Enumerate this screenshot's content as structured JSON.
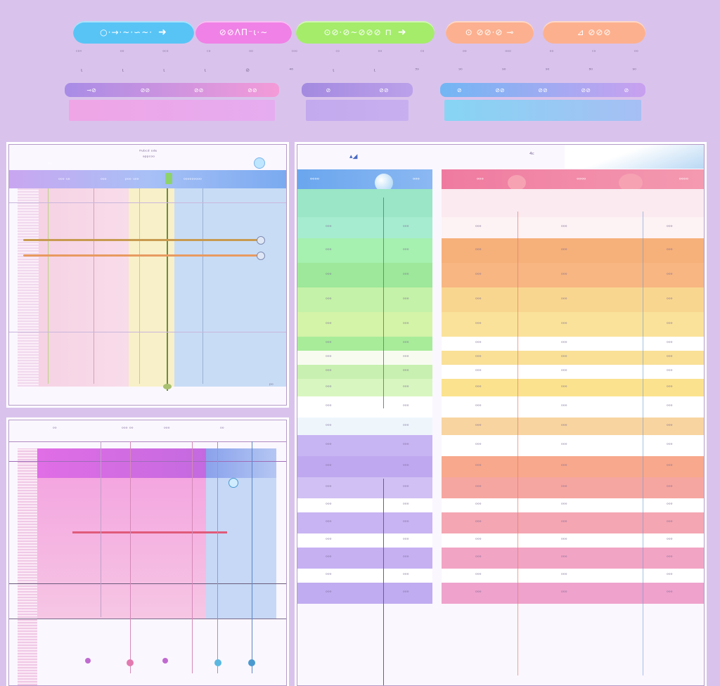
{
  "pills": [
    {
      "label": "○·→·~·∽~·",
      "arrow": "➜",
      "color": "#58c4f6"
    },
    {
      "label": "⊘⊘ΛΠ⁻ι·∼",
      "arrow": "",
      "color": "#f081e6"
    },
    {
      "label": "⊙⊘·⊘~⊘⊘⊘ ⊓",
      "arrow": "➜",
      "color": "#a4ec6a"
    },
    {
      "label": "⊙ ⊘⊘·⊘ ⊸",
      "arrow": "",
      "color": "#fcb08f"
    },
    {
      "label": "⊿ ⊘⊘⊘",
      "arrow": "",
      "color": "#fdb08e"
    }
  ],
  "tick_labels_row1": [
    "ᶜᵒⁿ",
    "ᵒᵒ",
    "ᵒᶜᵒ",
    "ᶜᵒ",
    "ᵒᵒ",
    "ᶜᵒᵒ",
    "ᶜᵒ",
    "ᵒᵒ",
    "ᶜᵒ",
    "ᵒᵒ",
    "ᵒᵒᵒ",
    "ᵒᵒ",
    "ᶜᵒ",
    "ᵒᵒ"
  ],
  "tick_labels_row2": [
    "ι",
    "ι",
    "ι",
    "ι",
    "⊘",
    "⁴⁶",
    "ι",
    "ι",
    "³⁹",
    "⁹⁰",
    "⁹⁰",
    "⁹⁰",
    "⁸⁰",
    "⁹⁰"
  ],
  "gradient_bars": [
    {
      "caps": [
        "⊸⊘",
        "⊘⊘",
        "⊘⊘",
        "⊘⊘"
      ],
      "cap_colors": [
        "#a88ce6",
        "#f49bd8"
      ],
      "body_colors": [
        "#f3a0e5",
        "#e7a8f0"
      ]
    },
    {
      "caps": [
        "⊘",
        "⊘⊘"
      ],
      "cap_colors": [
        "#a48ae0",
        "#bba0ea"
      ],
      "body_colors": [
        "#bfa4ee",
        "#c4acf0"
      ]
    },
    {
      "caps": [
        "⊘",
        "⊘⊘",
        "⊘⊘",
        "⊘⊘",
        "⊘"
      ],
      "cap_colors": [
        "#72b6f4",
        "#c9a0f0"
      ],
      "body_colors": [
        "#78d8f6",
        "#9dbef6"
      ]
    }
  ],
  "panel_a": {
    "title": "ᴴᵘᵇᶜᵈ ᵒᵈᵉ",
    "subtitle": "ᵃᵖᵖᶜᵒᵒ",
    "header_labels": [
      "ᵒᵒ",
      "ᵒᵒᵒ ᵘᵒ",
      "ᵒᵒᵒ",
      "ᵖᵒᵒ ᵘᵒᵒ",
      "ᵒᵒᵒᵒᵒᵒᵒᵒᵒ"
    ],
    "footer_label": "ᵖᵒ"
  },
  "panel_b": {
    "header_labels": [
      "ᵒᵒ",
      "ᵒᵒᵒ ᵒᵒ",
      "ᵒᵒᵒ",
      "ᵒᵒ"
    ]
  },
  "panel_c": {
    "title": "⁴ᶜ",
    "left_header": [
      "ᵒᵒᵒᵒ",
      "ᵒᵒᵒ"
    ],
    "right_header": [
      "ᵒᵒᵒ",
      "ᵒᵒᵒᵒ",
      "ᵒᵒᵒᵒ"
    ],
    "rows": [
      {
        "a": "ᵒᵒᵒ",
        "b": "ᵒᵒᵒ",
        "c": "ᵒᵒᵒ",
        "d": "ᵒᵒᵒ"
      },
      {
        "a": "ᵒᵒᵒ",
        "b": "ᵒᵒᵒ",
        "c": "ᵒᵒᵒ",
        "d": "ᵒᵒᵒ"
      },
      {
        "a": "ᵒᵒᵒ",
        "b": "ᵒᵒᵒ",
        "c": "ᵒᵒᵒ",
        "d": "ᵒᵒᵒ"
      },
      {
        "a": "ᵒᵒᵒ",
        "b": "ᵒᵒᵒ",
        "c": "ᵒᵒᵒ",
        "d": "ᵒᵒᵒ"
      },
      {
        "a": "ᵒᵒᵒ",
        "b": "ᵒᵒᵒ",
        "c": "ᵒᵒᵒ",
        "d": "ᵒᵒᵒ"
      },
      {
        "a": "ᵒᵒᵒ",
        "b": "ᵒᵒᵒ",
        "c": "ᵒᵒᵒ",
        "d": "ᵒᵒᵒ"
      },
      {
        "a": "ᵒᵒᵒ",
        "b": "ᵒᵒᵒ",
        "c": "ᵒᵒᵒ",
        "d": "ᵒᵒᵒ"
      },
      {
        "a": "ᵒᵒᵒ",
        "b": "ᵒᵒᵒ",
        "c": "ᵒᵒᵒ",
        "d": "ᵒᵒᵒ"
      },
      {
        "a": "ᵒᵒᵒ",
        "b": "ᵒᵒᵒ",
        "c": "ᵒᵒᵒ",
        "d": "ᵒᵒᵒ"
      },
      {
        "a": "ᵒᵒᵒ",
        "b": "ᵒᵒᵒ",
        "c": "ᵒᵒᵒ",
        "d": "ᵒᵒᵒ"
      },
      {
        "a": "ᵒᵒᵒ",
        "b": "ᵒᵒᵒ",
        "c": "ᵒᵒᵒ",
        "d": "ᵒᵒᵒ"
      },
      {
        "a": "ᵒᵒᵒ",
        "b": "ᵒᵒᵒ",
        "c": "ᵒᵒᵒ",
        "d": "ᵒᵒᵒ"
      },
      {
        "a": "ᵒᵒᵒ",
        "b": "ᵒᵒᵒ",
        "c": "ᵒᵒᵒ",
        "d": "ᵒᵒᵒ"
      },
      {
        "a": "ᵒᵒᵒ",
        "b": "ᵒᵒᵒ",
        "c": "ᵒᵒᵒ",
        "d": "ᵒᵒᵒ"
      },
      {
        "a": "ᵒᵒᵒ",
        "b": "ᵒᵒᵒ",
        "c": "ᵒᵒᵒ",
        "d": "ᵒᵒᵒ"
      },
      {
        "a": "ᵒᵒᵒ",
        "b": "ᵒᵒᵒ",
        "c": "ᵒᵒᵒ",
        "d": "ᵒᵒᵒ"
      },
      {
        "a": "ᵒᵒᵒ",
        "b": "ᵒᵒᵒ",
        "c": "ᵒᵒᵒ",
        "d": "ᵒᵒᵒ"
      },
      {
        "a": "ᵒᵒᵒ",
        "b": "ᵒᵒᵒ",
        "c": "ᵒᵒᵒ",
        "d": "ᵒᵒᵒ"
      },
      {
        "a": "ᵒᵒᵒ",
        "b": "ᵒᵒᵒ",
        "c": "ᵒᵒᵒ",
        "d": "ᵒᵒᵒ"
      },
      {
        "a": "ᵒᵒᵒ",
        "b": "ᵒᵒᵒ",
        "c": "ᵒᵒᵒ",
        "d": "ᵒᵒᵒ"
      }
    ]
  },
  "colors": {
    "background": "#d9c3ec",
    "left_table_header": "#6aa6ee",
    "right_table_header": "#ef7aa0"
  }
}
